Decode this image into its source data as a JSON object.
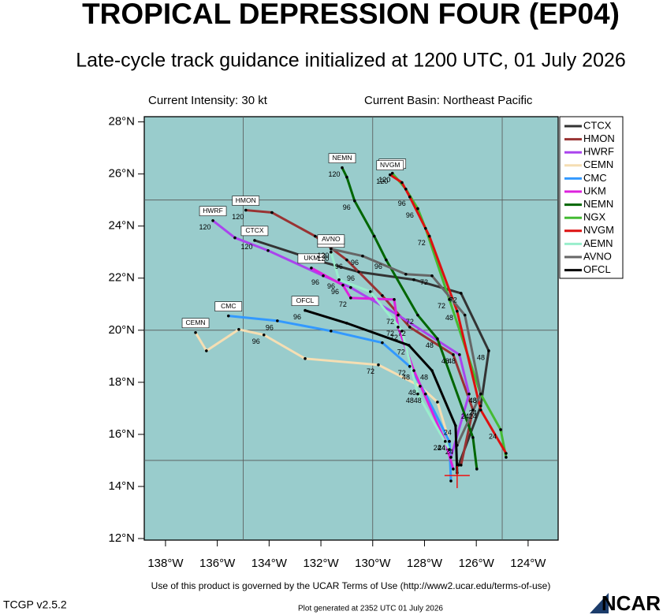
{
  "chart_data": {
    "type": "track",
    "title": "TROPICAL DEPRESSION FOUR (EP04)",
    "subtitle": "Late-cycle track guidance initialized at 1200 UTC, 01 July 2026",
    "intensity": "Current Intensity: 30 kt",
    "basin": "Current Basin: Northeast Pacific",
    "footer": "Use of this product is governed by the UCAR Terms of Use (http://www2.ucar.edu/terms-of-use)",
    "version": "TCGP v2.5.2",
    "generated": "Plot generated at 2352 UTC   01 July 2026",
    "logo": "NCAR",
    "xlim": [
      -138.82,
      -122.84
    ],
    "ylim": [
      11.94,
      28.2
    ],
    "xticks": [
      {
        "value": -138,
        "label": "138°W"
      },
      {
        "value": -136,
        "label": "136°W"
      },
      {
        "value": -134,
        "label": "134°W"
      },
      {
        "value": -132,
        "label": "132°W"
      },
      {
        "value": -130,
        "label": "130°W"
      },
      {
        "value": -128,
        "label": "128°W"
      },
      {
        "value": -126,
        "label": "126°W"
      },
      {
        "value": -124,
        "label": "124°W"
      }
    ],
    "yticks": [
      {
        "value": 12,
        "label": "12°N"
      },
      {
        "value": 14,
        "label": "14°N"
      },
      {
        "value": 16,
        "label": "16°N"
      },
      {
        "value": 18,
        "label": "18°N"
      },
      {
        "value": 20,
        "label": "20°N"
      },
      {
        "value": 22,
        "label": "22°N"
      },
      {
        "value": 24,
        "label": "24°N"
      },
      {
        "value": 26,
        "label": "26°N"
      },
      {
        "value": 28,
        "label": "28°N"
      }
    ],
    "grid_lons": [
      -135,
      -130,
      -125
    ],
    "grid_lats": [
      15,
      20,
      25
    ],
    "start": {
      "lon": -126.74,
      "lat": 14.42
    },
    "series": [
      {
        "name": "CTCX",
        "color": "#333333",
        "lon": [
          -126.68,
          -125.83,
          -125.52,
          -126.59,
          -128.41,
          -130.54,
          -132.22,
          -134.56
        ],
        "lat": [
          14.82,
          17.09,
          19.21,
          21.42,
          21.94,
          22.24,
          22.7,
          23.45
        ],
        "hours": [
          null,
          "24",
          "48",
          "72",
          null,
          "96",
          null,
          "120"
        ]
      },
      {
        "name": "HMON",
        "color": "#993333",
        "lon": [
          -126.59,
          -126.13,
          -126.89,
          -128.57,
          -129.63,
          -131.0,
          -132.22,
          -133.89,
          -134.9
        ],
        "lat": [
          14.82,
          16.94,
          19.06,
          20.12,
          21.33,
          22.7,
          23.61,
          24.52,
          24.61
        ],
        "hours": [
          null,
          "24",
          "48",
          "72",
          null,
          "96",
          null,
          null,
          "120"
        ]
      },
      {
        "name": "HWRF",
        "color": "#aa44ee",
        "lon": [
          -126.98,
          -126.28,
          -126.65,
          -129.02,
          -130.85,
          -131.91,
          -134.04,
          -135.32,
          -136.17
        ],
        "lat": [
          15.12,
          17.55,
          19.06,
          20.58,
          21.64,
          22.09,
          23.06,
          23.55,
          24.21
        ],
        "hours": [
          null,
          null,
          "48",
          "72",
          null,
          "96",
          null,
          null,
          "120"
        ]
      },
      {
        "name": "CEMN",
        "color": "#f5deb3",
        "lon": [
          -127.04,
          -127.5,
          -128.17,
          -129.78,
          -132.61,
          -134.2,
          -135.17,
          -136.42,
          -136.84
        ],
        "lat": [
          15.73,
          17.24,
          17.85,
          18.67,
          18.91,
          19.82,
          20.03,
          19.21,
          19.91
        ],
        "hours": [
          "24",
          null,
          "48",
          "72",
          null,
          "96",
          null,
          null,
          null
        ]
      },
      {
        "name": "CMC",
        "color": "#3399ff",
        "lon": [
          -126.98,
          -127.04,
          -127.96,
          -128.57,
          -129.63,
          -131.61,
          -133.68,
          -135.57
        ],
        "lat": [
          14.21,
          15.73,
          17.55,
          18.61,
          19.52,
          19.97,
          20.36,
          20.55
        ],
        "hours": [
          null,
          "24",
          "48",
          "72",
          null,
          null,
          "96",
          null
        ]
      },
      {
        "name": "UKM",
        "color": "#dd22dd",
        "lon": [
          -126.89,
          -127.2,
          -128.41,
          -129.02,
          -129.17,
          -130.85,
          -131.15,
          -132.37
        ],
        "lat": [
          14.67,
          15.73,
          18.45,
          20.12,
          21.18,
          21.24,
          21.73,
          22.39
        ],
        "hours": [
          null,
          "24",
          "48",
          "72",
          null,
          "72",
          "96",
          null
        ]
      },
      {
        "name": "NEMN",
        "color": "#006600",
        "lon": [
          -125.98,
          -126.13,
          -127.5,
          -128.26,
          -129.48,
          -129.94,
          -130.7,
          -131.0,
          -131.18
        ],
        "lat": [
          14.67,
          15.88,
          19.67,
          20.58,
          22.7,
          23.61,
          24.97,
          25.88,
          26.24
        ],
        "hours": [
          null,
          null,
          "48",
          "72",
          "96",
          null,
          "96",
          null,
          "120"
        ]
      },
      {
        "name": "NGX",
        "color": "#44bb33",
        "lon": [
          -124.85,
          -125.06,
          -125.83,
          -127.04,
          -127.96,
          -128.26,
          -128.72,
          -129.24
        ],
        "lat": [
          15.12,
          16.18,
          17.55,
          21.18,
          23.91,
          24.67,
          25.42,
          26.03
        ],
        "hours": [
          null,
          "24",
          "48",
          "72",
          null,
          "96",
          null,
          "120"
        ]
      },
      {
        "name": "NVGM",
        "color": "#dd1111",
        "lon": [
          -124.85,
          -125.83,
          -126.74,
          -127.81,
          -128.57,
          -128.87,
          -129.33
        ],
        "lat": [
          15.27,
          16.94,
          20.73,
          23.61,
          25.12,
          25.67,
          25.97
        ],
        "hours": [
          null,
          "24",
          "48",
          "72",
          "96",
          null,
          "120"
        ]
      },
      {
        "name": "AEMN",
        "color": "#99eecc",
        "lon": [
          -127.04,
          -128.26,
          -128.87,
          -130.09,
          -131.3,
          -131.61
        ],
        "lat": [
          15.42,
          17.55,
          19.97,
          21.48,
          21.94,
          23.0
        ],
        "hours": [
          null,
          "48",
          "72",
          null,
          "96",
          "120"
        ]
      },
      {
        "name": "AVNO",
        "color": "#666666",
        "lon": [
          -126.74,
          -125.83,
          -126.44,
          -127.71,
          -128.72,
          -130.39,
          -131.61
        ],
        "lat": [
          15.58,
          17.55,
          20.58,
          22.09,
          22.15,
          22.85,
          23.12
        ],
        "hours": [
          "24",
          "48",
          null,
          "72",
          null,
          "96",
          "120"
        ]
      },
      {
        "name": "OFCL",
        "color": "#000000",
        "lon": [
          -126.74,
          -126.8,
          -127.71,
          -128.6,
          -131.0,
          -132.61
        ],
        "lat": [
          14.52,
          16.33,
          18.45,
          19.42,
          20.27,
          20.76
        ],
        "hours": [
          null,
          "24",
          "48",
          "72",
          null,
          "96"
        ]
      }
    ]
  }
}
